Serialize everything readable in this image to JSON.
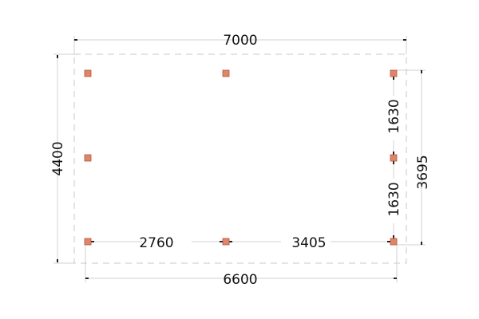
{
  "colors": {
    "post": "#e0856a",
    "post_border": "#b5553a",
    "dim_line": "#d0d0d0",
    "outline": "#c8c8c8",
    "text": "#111111"
  },
  "dimensions": {
    "overall_width": "7000",
    "overall_depth": "4400",
    "post_span_width": "6600",
    "post_span_depth": "3695",
    "bay_left": "2760",
    "bay_right": "3405",
    "side_upper": "1630",
    "side_lower": "1630"
  },
  "posts": [
    {
      "col": 0,
      "row": 0
    },
    {
      "col": 1,
      "row": 0
    },
    {
      "col": 2,
      "row": 0
    },
    {
      "col": 0,
      "row": 1
    },
    {
      "col": 2,
      "row": 1
    },
    {
      "col": 0,
      "row": 2
    },
    {
      "col": 1,
      "row": 2
    },
    {
      "col": 2,
      "row": 2
    }
  ]
}
